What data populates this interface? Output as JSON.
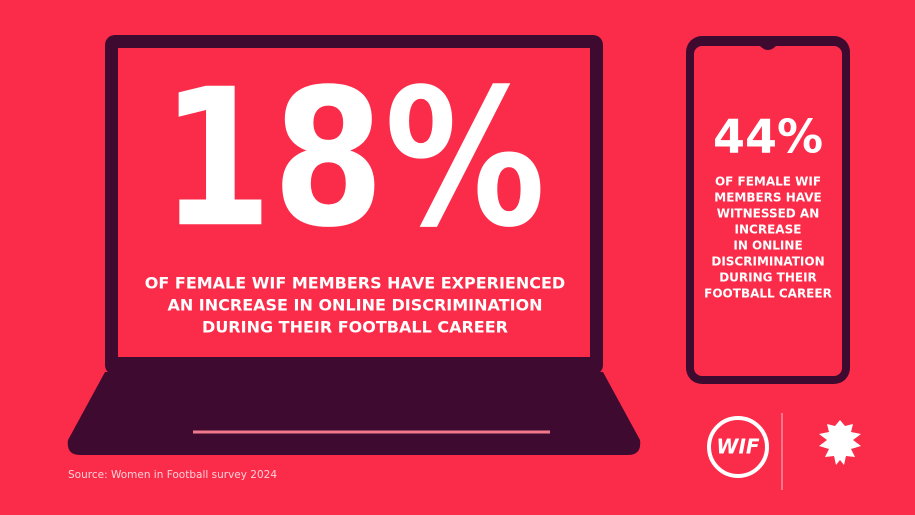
{
  "laptop": {
    "stat": "18%",
    "caption_lines": [
      "OF FEMALE WIF MEMBERS HAVE EXPERIENCED",
      "AN INCREASE IN ONLINE DISCRIMINATION",
      "DURING THEIR FOOTBALL CAREER"
    ]
  },
  "phone": {
    "stat": "44%",
    "caption_lines": [
      "OF FEMALE WIF",
      "MEMBERS HAVE",
      "WITNESSED AN",
      "INCREASE",
      "IN ONLINE",
      "DISCRIMINATION",
      "DURING THEIR",
      "FOOTBALL CAREER"
    ]
  },
  "source": "Source: Women in Football survey 2024",
  "logo": "WIF"
}
